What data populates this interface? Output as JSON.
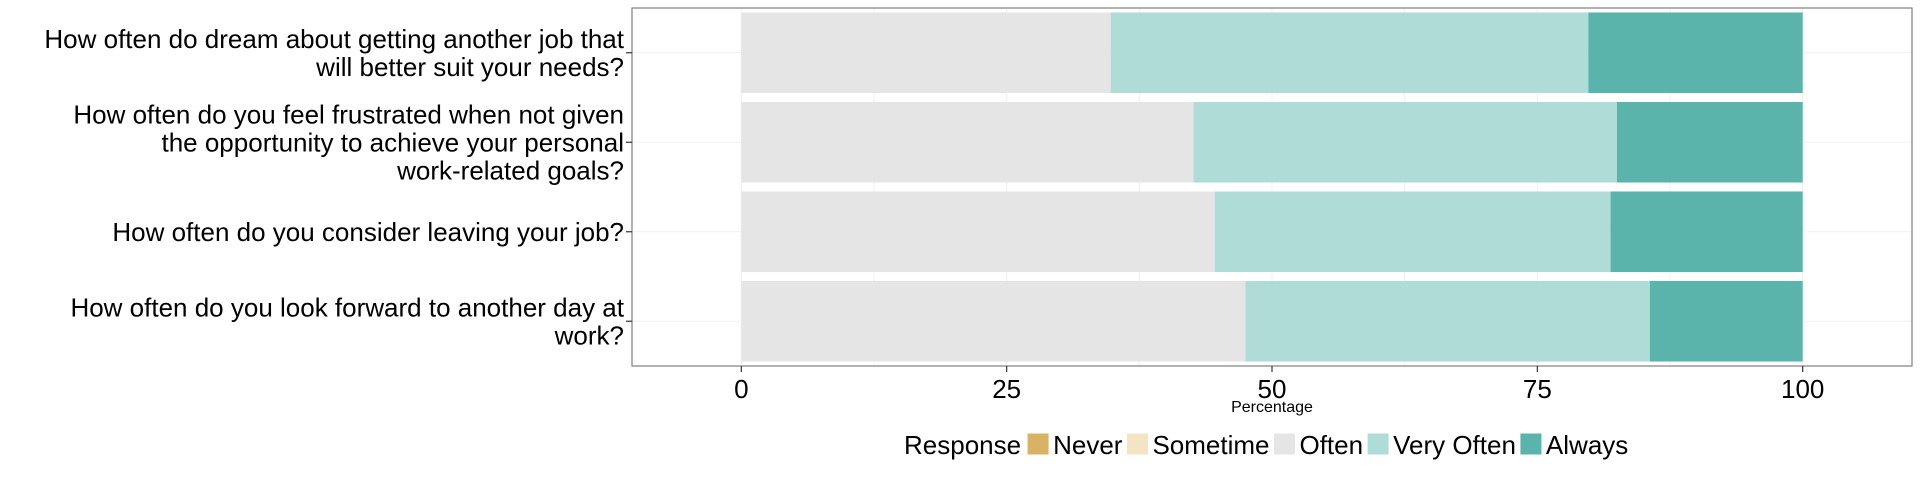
{
  "chart_data": {
    "type": "bar",
    "orientation": "horizontal",
    "stacked": true,
    "categories": [
      [
        "How often do dream about getting another job that",
        "will better suit your needs?"
      ],
      [
        "How often do you feel frustrated when not given",
        "the opportunity to achieve your personal",
        "work-related goals?"
      ],
      [
        "How often do you consider leaving your job?"
      ],
      [
        "How often do you look forward to another day at",
        "work?"
      ]
    ],
    "series": [
      {
        "name": "Never",
        "color": "#D8B365",
        "values": [
          0,
          0,
          0,
          0
        ]
      },
      {
        "name": "Sometime",
        "color": "#F5E4C3",
        "values": [
          0,
          0,
          0,
          0
        ]
      },
      {
        "name": "Often",
        "color": "#E5E5E5",
        "values": [
          34.8,
          42.6,
          44.6,
          47.5
        ]
      },
      {
        "name": "Very Often",
        "color": "#B0DCD8",
        "values": [
          45.0,
          39.9,
          37.3,
          38.1
        ]
      },
      {
        "name": "Always",
        "color": "#5AB4AC",
        "values": [
          20.2,
          17.5,
          18.1,
          14.4
        ]
      }
    ],
    "xlabel": "Percentage",
    "xlim": [
      -10.3,
      110.3
    ],
    "xticks": [
      "0",
      "25",
      "50",
      "75",
      "100"
    ],
    "grid": true,
    "legend": {
      "title": "Response",
      "position": "bottom"
    }
  }
}
